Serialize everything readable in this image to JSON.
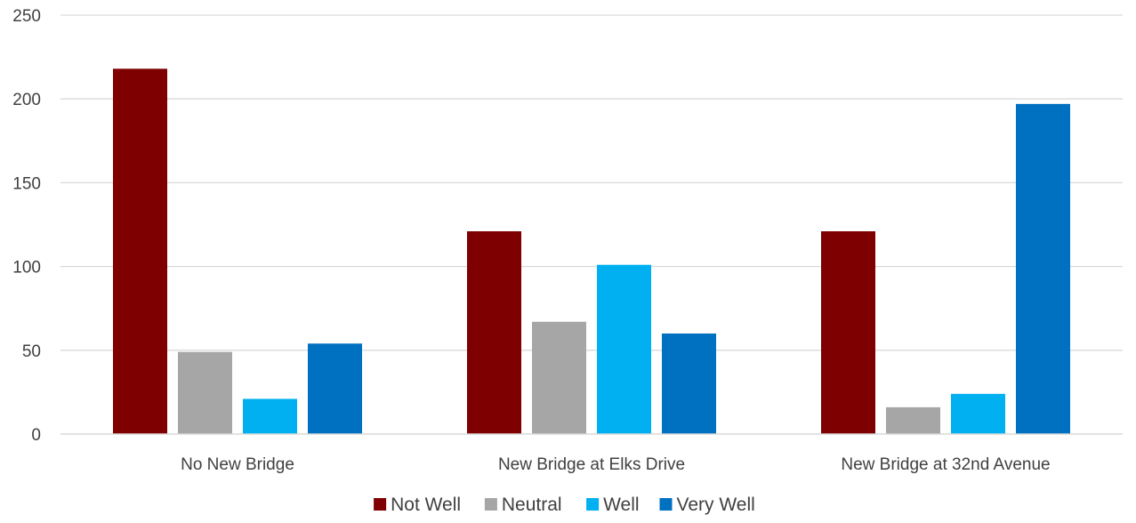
{
  "chart_data": {
    "type": "bar",
    "title": "",
    "xlabel": "",
    "ylabel": "",
    "ylim": [
      0,
      250
    ],
    "yticks": [
      0,
      50,
      100,
      150,
      200,
      250
    ],
    "grid": true,
    "legend_position": "bottom",
    "categories": [
      "No New Bridge",
      "New Bridge at Elks Drive",
      "New Bridge at 32nd Avenue"
    ],
    "series": [
      {
        "name": "Not Well",
        "color": "#7f0000",
        "values": [
          218,
          121,
          121
        ]
      },
      {
        "name": "Neutral",
        "color": "#a6a6a6",
        "values": [
          49,
          67,
          16
        ]
      },
      {
        "name": "Well",
        "color": "#00b0f0",
        "values": [
          21,
          101,
          24
        ]
      },
      {
        "name": "Very Well",
        "color": "#0070c0",
        "values": [
          54,
          60,
          197
        ]
      }
    ]
  }
}
